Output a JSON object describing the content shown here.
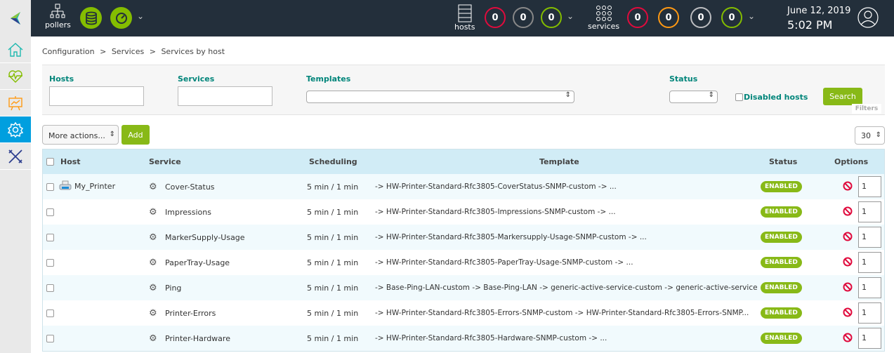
{
  "topbar": {
    "pollers_label": "pollers",
    "hosts_label": "hosts",
    "services_label": "services",
    "host_counts": [
      {
        "value": "0",
        "color": "#e00b3d"
      },
      {
        "value": "0",
        "color": "#888888"
      },
      {
        "value": "0",
        "color": "#84bd00"
      }
    ],
    "service_counts": [
      {
        "value": "0",
        "color": "#e00b3d"
      },
      {
        "value": "0",
        "color": "#ff9913"
      },
      {
        "value": "0",
        "color": "#bcbdc0"
      },
      {
        "value": "0",
        "color": "#84bd00"
      }
    ],
    "date": "June 12, 2019",
    "time": "5:02 PM"
  },
  "sidebar": {
    "items": [
      "home-icon",
      "monitoring-icon",
      "reporting-icon",
      "configuration-icon",
      "administration-icon"
    ],
    "active": "configuration-icon"
  },
  "breadcrumb": {
    "items": [
      "Configuration",
      "Services",
      "Services by host"
    ],
    "separator": ">"
  },
  "filters": {
    "hosts_label": "Hosts",
    "hosts_value": "",
    "services_label": "Services",
    "services_value": "",
    "templates_label": "Templates",
    "templates_value": "",
    "status_label": "Status",
    "status_value": "",
    "disabled_hosts_label": "Disabled hosts",
    "search_label": "Search",
    "filters_tab": "Filters"
  },
  "actions": {
    "more_actions": "More actions...",
    "add_label": "Add",
    "per_page": "30"
  },
  "table": {
    "headers": {
      "host": "Host",
      "service": "Service",
      "scheduling": "Scheduling",
      "template": "Template",
      "status": "Status",
      "options": "Options"
    },
    "rows": [
      {
        "host": "My_Printer",
        "service": "Cover-Status",
        "scheduling": "5 min / 1 min",
        "template": "-> HW-Printer-Standard-Rfc3805-CoverStatus-SNMP-custom -> ...",
        "status": "ENABLED",
        "option_value": "1"
      },
      {
        "host": "",
        "service": "Impressions",
        "scheduling": "5 min / 1 min",
        "template": "-> HW-Printer-Standard-Rfc3805-Impressions-SNMP-custom -> ...",
        "status": "ENABLED",
        "option_value": "1"
      },
      {
        "host": "",
        "service": "MarkerSupply-Usage",
        "scheduling": "5 min / 1 min",
        "template": "-> HW-Printer-Standard-Rfc3805-Markersupply-Usage-SNMP-custom -> ...",
        "status": "ENABLED",
        "option_value": "1"
      },
      {
        "host": "",
        "service": "PaperTray-Usage",
        "scheduling": "5 min / 1 min",
        "template": "-> HW-Printer-Standard-Rfc3805-PaperTray-Usage-SNMP-custom -> ...",
        "status": "ENABLED",
        "option_value": "1"
      },
      {
        "host": "",
        "service": "Ping",
        "scheduling": "5 min / 1 min",
        "template": "-> Base-Ping-LAN-custom -> Base-Ping-LAN -> generic-active-service-custom -> generic-active-service",
        "status": "ENABLED",
        "option_value": "1"
      },
      {
        "host": "",
        "service": "Printer-Errors",
        "scheduling": "5 min / 1 min",
        "template": "-> HW-Printer-Standard-Rfc3805-Errors-SNMP-custom -> HW-Printer-Standard-Rfc3805-Errors-SNMP...",
        "status": "ENABLED",
        "option_value": "1"
      },
      {
        "host": "",
        "service": "Printer-Hardware",
        "scheduling": "5 min / 1 min",
        "template": "-> HW-Printer-Standard-Rfc3805-Hardware-SNMP-custom -> ...",
        "status": "ENABLED",
        "option_value": "1"
      }
    ]
  }
}
